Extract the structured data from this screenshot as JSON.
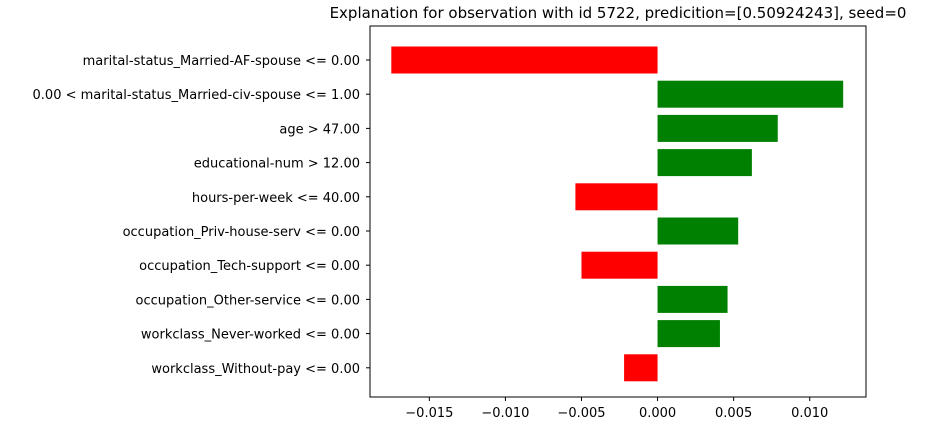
{
  "chart_data": {
    "type": "bar",
    "orientation": "horizontal",
    "title": "Explanation for observation with id 5722, predicition=[0.50924243], seed=0",
    "xlabel": "",
    "ylabel": "",
    "categories": [
      "marital-status_Married-AF-spouse <= 0.00",
      "0.00 < marital-status_Married-civ-spouse <= 1.00",
      "age > 47.00",
      "educational-num > 12.00",
      "hours-per-week <= 40.00",
      "occupation_Priv-house-serv <= 0.00",
      "occupation_Tech-support <= 0.00",
      "occupation_Other-service <= 0.00",
      "workclass_Never-worked <= 0.00",
      "workclass_Without-pay <= 0.00"
    ],
    "values": [
      -0.0175,
      0.0122,
      0.0079,
      0.0062,
      -0.0054,
      0.0053,
      -0.005,
      0.0046,
      0.0041,
      -0.0022
    ],
    "xlim": [
      -0.0189,
      0.0137
    ],
    "xticks": [
      -0.015,
      -0.01,
      -0.005,
      0.0,
      0.005,
      0.01
    ],
    "xtick_labels": [
      "−0.015",
      "−0.010",
      "−0.005",
      "0.000",
      "0.005",
      "0.010"
    ],
    "colors": {
      "positive": "#008000",
      "negative": "#ff0000"
    },
    "grid": false,
    "legend": "none"
  }
}
